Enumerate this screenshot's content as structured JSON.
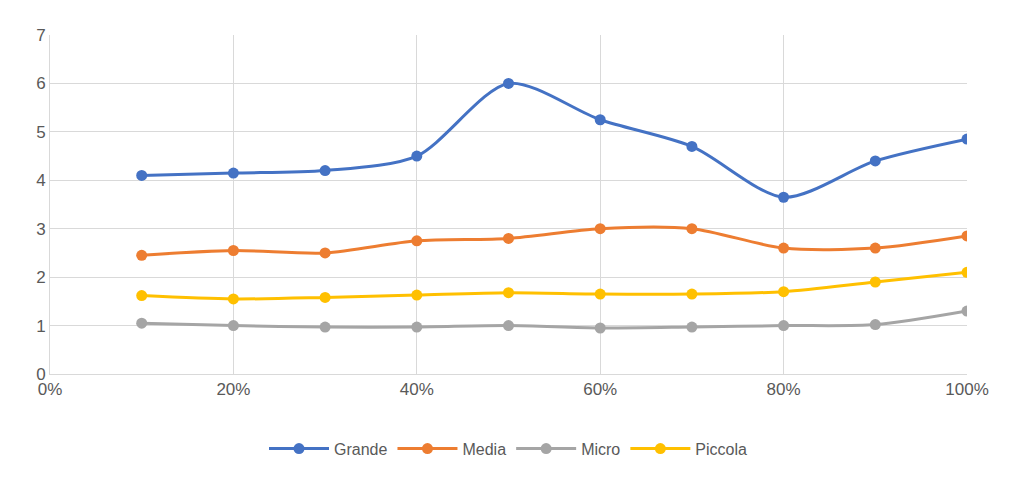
{
  "chart_data": {
    "type": "line",
    "x": [
      10,
      20,
      30,
      40,
      50,
      60,
      70,
      80,
      90,
      100
    ],
    "series": [
      {
        "name": "Grande",
        "color": "#4472c4",
        "values": [
          4.1,
          4.15,
          4.2,
          4.5,
          6.0,
          5.25,
          4.7,
          3.65,
          4.4,
          4.85
        ]
      },
      {
        "name": "Media",
        "color": "#ed7d31",
        "values": [
          2.45,
          2.55,
          2.5,
          2.75,
          2.8,
          3.0,
          3.0,
          2.6,
          2.6,
          2.85
        ]
      },
      {
        "name": "Micro",
        "color": "#a5a5a5",
        "values": [
          1.05,
          1.0,
          0.97,
          0.97,
          1.0,
          0.95,
          0.97,
          1.0,
          1.02,
          1.3
        ]
      },
      {
        "name": "Piccola",
        "color": "#ffc000",
        "values": [
          1.62,
          1.55,
          1.58,
          1.63,
          1.68,
          1.65,
          1.65,
          1.7,
          1.9,
          2.1
        ]
      }
    ],
    "xlim": [
      0,
      100
    ],
    "xticks": [
      {
        "value": 0,
        "label": "0%"
      },
      {
        "value": 20,
        "label": "20%"
      },
      {
        "value": 40,
        "label": "40%"
      },
      {
        "value": 60,
        "label": "60%"
      },
      {
        "value": 80,
        "label": "80%"
      },
      {
        "value": 100,
        "label": "100%"
      }
    ],
    "ylim": [
      0,
      7
    ],
    "yticks": [
      0,
      1,
      2,
      3,
      4,
      5,
      6,
      7
    ],
    "grid": true,
    "legend": "bottom",
    "marker": "circle",
    "line_style": "smooth"
  }
}
